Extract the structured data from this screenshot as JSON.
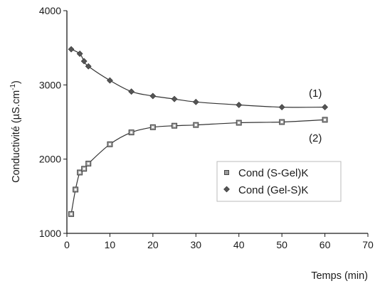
{
  "chart_data": {
    "type": "line",
    "xlabel": "Temps (min)",
    "ylabel_main": "Conductivité (µS.cm",
    "ylabel_sup": "-1",
    "ylabel_close": ")",
    "xlim": [
      0,
      70
    ],
    "ylim": [
      1000,
      4000
    ],
    "xticks": [
      0,
      10,
      20,
      30,
      40,
      50,
      60,
      70
    ],
    "yticks": [
      1000,
      2000,
      3000,
      4000
    ],
    "grid": false,
    "legend_position": "lower-right",
    "series": [
      {
        "name": "Cond (S-Gel)K",
        "marker": "open-square",
        "curve_label": "(2)",
        "x": [
          1,
          2,
          3,
          4,
          5,
          10,
          15,
          20,
          25,
          30,
          40,
          50,
          60
        ],
        "y": [
          1260,
          1590,
          1820,
          1870,
          1940,
          2200,
          2360,
          2430,
          2450,
          2460,
          2490,
          2500,
          2530
        ]
      },
      {
        "name": "Cond (Gel-S)K",
        "marker": "filled-diamond",
        "curve_label": "(1)",
        "x": [
          1,
          3,
          4,
          5,
          10,
          15,
          20,
          25,
          30,
          40,
          50,
          60
        ],
        "y": [
          3480,
          3420,
          3320,
          3250,
          3060,
          2910,
          2850,
          2810,
          2770,
          2730,
          2700,
          2700
        ]
      }
    ]
  },
  "colors": {
    "axis": "#1a1a1a",
    "curve": "#333333",
    "marker_fill": "#555555",
    "square_fill": "#9a9a9a"
  }
}
